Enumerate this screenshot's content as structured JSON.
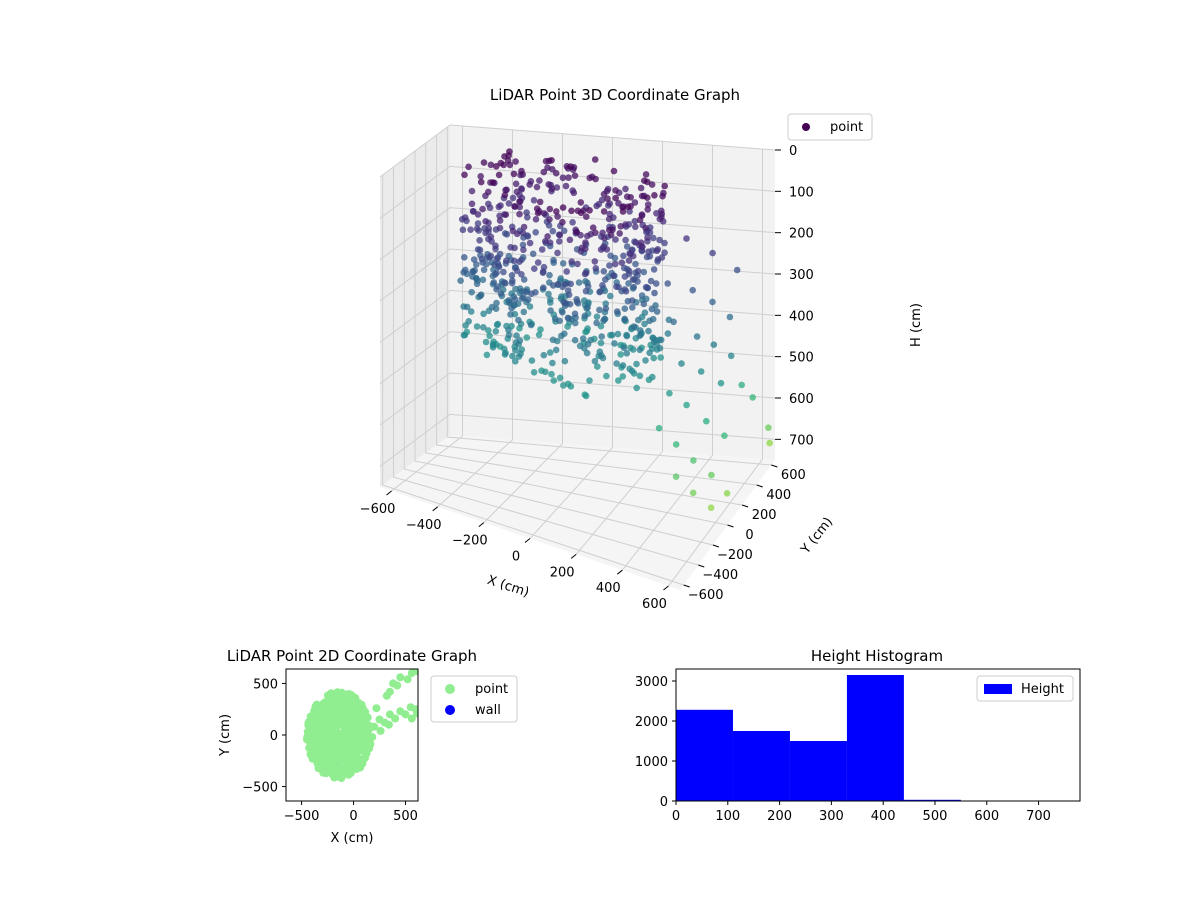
{
  "chart_data": [
    {
      "type": "scatter",
      "projection": "3d",
      "title": "LiDAR Point 3D Coordinate Graph",
      "xlabel": "X (cm)",
      "ylabel": "Y (cm)",
      "zlabel": "H (cm)",
      "xlim": [
        -650,
        650
      ],
      "ylim": [
        -650,
        650
      ],
      "zlim": [
        750,
        0
      ],
      "x_ticks": [
        -600,
        -400,
        -200,
        0,
        200,
        400,
        600
      ],
      "y_ticks": [
        -600,
        -400,
        -200,
        0,
        200,
        400,
        600
      ],
      "z_ticks": [
        0,
        100,
        200,
        300,
        400,
        500,
        600,
        700
      ],
      "colormap": "viridis",
      "grid": true,
      "legend": {
        "entries": [
          "point"
        ],
        "position": "top-right"
      },
      "series": [
        {
          "name": "point",
          "color_start": "#440154",
          "color_end": "#7ad151",
          "clusters": [
            {
              "kind": "ring",
              "center": [
                -40,
                40
              ],
              "radius_range": [
                150,
                420
              ],
              "h_range": [
                0,
                440
              ],
              "count": 1900
            }
          ],
          "points": [
            [
              430,
              170,
              120
            ],
            [
              520,
              230,
              160
            ],
            [
              600,
              300,
              210
            ],
            [
              360,
              60,
              150
            ],
            [
              470,
              120,
              230
            ],
            [
              540,
              160,
              260
            ],
            [
              600,
              200,
              300
            ],
            [
              420,
              20,
              290
            ],
            [
              500,
              80,
              330
            ],
            [
              560,
              110,
              350
            ],
            [
              620,
              150,
              380
            ],
            [
              380,
              -20,
              330
            ],
            [
              450,
              30,
              390
            ],
            [
              520,
              70,
              410
            ],
            [
              590,
              110,
              440
            ],
            [
              360,
              -80,
              410
            ],
            [
              420,
              -40,
              450
            ],
            [
              480,
              0,
              480
            ],
            [
              550,
              40,
              520
            ],
            [
              610,
              90,
              560
            ],
            [
              400,
              -120,
              520
            ],
            [
              460,
              -80,
              560
            ],
            [
              520,
              -40,
              600
            ],
            [
              580,
              10,
              640
            ],
            [
              630,
              60,
              690
            ],
            [
              480,
              -150,
              620
            ],
            [
              540,
              -110,
              660
            ],
            [
              600,
              -60,
              700
            ],
            [
              650,
              560,
              650
            ],
            [
              640,
              610,
              700
            ],
            [
              610,
              480,
              560
            ],
            [
              580,
              430,
              520
            ],
            [
              300,
              60,
              230
            ],
            [
              330,
              20,
              270
            ],
            [
              290,
              -10,
              320
            ],
            [
              340,
              -50,
              360
            ]
          ]
        }
      ]
    },
    {
      "type": "scatter",
      "title": "LiDAR Point 2D Coordinate Graph",
      "xlabel": "X (cm)",
      "ylabel": "Y (cm)",
      "xlim": [
        -650,
        620
      ],
      "ylim": [
        -640,
        640
      ],
      "x_ticks": [
        -500,
        0,
        500
      ],
      "y_ticks": [
        -500,
        0,
        500
      ],
      "legend": {
        "entries": [
          "point",
          "wall"
        ],
        "position": "outside-right"
      },
      "series": [
        {
          "name": "point",
          "color": "#90ee90",
          "clusters": [
            {
              "kind": "blob",
              "center": [
                -110,
                20
              ],
              "rx": [
                -450,
                170
              ],
              "ry": [
                -420,
                420
              ]
            }
          ],
          "points": [
            [
              200,
              80
            ],
            [
              300,
              120
            ],
            [
              400,
              160
            ],
            [
              500,
              200
            ],
            [
              600,
              250
            ],
            [
              120,
              150
            ],
            [
              220,
              260
            ],
            [
              320,
              380
            ],
            [
              420,
              480
            ],
            [
              520,
              540
            ],
            [
              350,
              420
            ],
            [
              380,
              500
            ],
            [
              450,
              560
            ],
            [
              560,
              600
            ],
            [
              600,
              620
            ],
            [
              150,
              90
            ],
            [
              250,
              150
            ],
            [
              350,
              200
            ],
            [
              450,
              230
            ],
            [
              550,
              270
            ],
            [
              100,
              50
            ],
            [
              180,
              -20
            ],
            [
              260,
              40
            ],
            [
              340,
              100
            ],
            [
              560,
              160
            ],
            [
              610,
              210
            ]
          ]
        },
        {
          "name": "wall",
          "color": "#0000ff",
          "points": []
        }
      ]
    },
    {
      "type": "bar",
      "subtype": "histogram",
      "title": "Height Histogram",
      "xlim": [
        0,
        780
      ],
      "ylim": [
        0,
        3300
      ],
      "x_ticks": [
        0,
        100,
        200,
        300,
        400,
        500,
        600,
        700
      ],
      "y_ticks": [
        0,
        1000,
        2000,
        3000
      ],
      "bin_edges": [
        0,
        110,
        220,
        330,
        440,
        550,
        660,
        770
      ],
      "values": [
        2280,
        1750,
        1500,
        3150,
        30,
        5,
        3
      ],
      "color": "#0000ff",
      "legend": {
        "entries": [
          "Height"
        ],
        "position": "top-right"
      }
    }
  ]
}
